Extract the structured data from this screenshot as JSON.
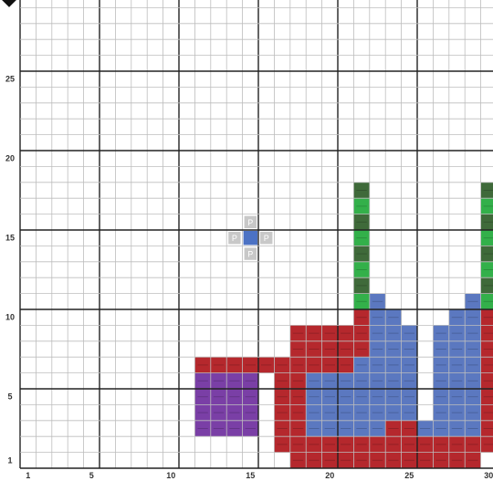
{
  "board": {
    "cols": 30,
    "rows": 29,
    "colors": {
      "grid_line": "#bdbdbd",
      "grid_major": "#222222",
      "red": "#b5282d",
      "blue": "#5b78c0",
      "green_light": "#33b04a",
      "green_dark": "#3f6a3a",
      "purple": "#7a3fa6",
      "placement_hint": "#c8c8c8",
      "selected": "#4c72c4"
    },
    "x_labels": [
      {
        "col": 1,
        "text": "1"
      },
      {
        "col": 5,
        "text": "5"
      },
      {
        "col": 10,
        "text": "10"
      },
      {
        "col": 15,
        "text": "15"
      },
      {
        "col": 20,
        "text": "20"
      },
      {
        "col": 25,
        "text": "25"
      },
      {
        "col": 30,
        "text": "30"
      }
    ],
    "y_labels": [
      {
        "row": 1,
        "text": "1"
      },
      {
        "row": 5,
        "text": "5"
      },
      {
        "row": 10,
        "text": "10"
      },
      {
        "row": 15,
        "text": "15"
      },
      {
        "row": 20,
        "text": "20"
      },
      {
        "row": 25,
        "text": "25"
      }
    ],
    "cursor": {
      "col": 15,
      "row": 15,
      "hint_label": "P",
      "hints": [
        [
          15,
          16
        ],
        [
          14,
          15
        ],
        [
          16,
          15
        ],
        [
          15,
          14
        ]
      ]
    },
    "cells": [
      {
        "color": "red",
        "rows": [
          [
            1,
            18,
            29
          ],
          [
            2,
            17,
            30
          ],
          [
            3,
            17,
            30
          ],
          [
            4,
            17,
            18
          ],
          [
            5,
            17,
            18
          ],
          [
            6,
            17,
            18
          ],
          [
            7,
            12,
            21
          ],
          [
            8,
            18,
            22
          ],
          [
            9,
            18,
            22
          ],
          [
            10,
            22,
            22
          ],
          [
            4,
            29,
            30
          ],
          [
            5,
            30,
            30
          ],
          [
            6,
            30,
            30
          ],
          [
            7,
            30,
            30
          ],
          [
            8,
            30,
            30
          ],
          [
            9,
            30,
            30
          ],
          [
            10,
            30,
            30
          ]
        ]
      },
      {
        "color": "blue",
        "rows": [
          [
            3,
            19,
            23
          ],
          [
            3,
            26,
            29
          ],
          [
            4,
            19,
            25
          ],
          [
            4,
            27,
            29
          ],
          [
            5,
            19,
            25
          ],
          [
            5,
            27,
            29
          ],
          [
            6,
            19,
            25
          ],
          [
            6,
            27,
            29
          ],
          [
            7,
            22,
            25
          ],
          [
            7,
            27,
            29
          ],
          [
            8,
            23,
            25
          ],
          [
            8,
            27,
            29
          ],
          [
            9,
            23,
            25
          ],
          [
            9,
            27,
            29
          ],
          [
            10,
            23,
            24
          ],
          [
            10,
            28,
            29
          ],
          [
            11,
            23,
            23
          ],
          [
            11,
            29,
            29
          ]
        ]
      },
      {
        "color": "purple",
        "rows": [
          [
            3,
            12,
            15
          ],
          [
            4,
            12,
            15
          ],
          [
            5,
            12,
            15
          ],
          [
            6,
            12,
            15
          ]
        ]
      },
      {
        "color": "green",
        "cols": [
          22,
          30
        ],
        "from": 11,
        "to": 18
      }
    ]
  }
}
